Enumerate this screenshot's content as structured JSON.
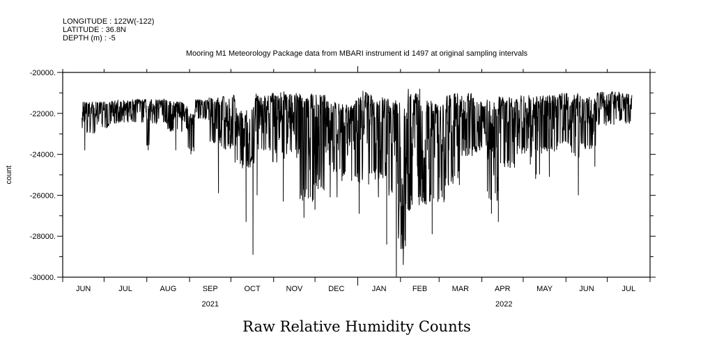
{
  "header": {
    "longitude": "LONGITUDE : 122W(-122)",
    "latitude": "LATITUDE : 36.8N",
    "depth": "DEPTH (m) : -5",
    "subtitle": "Mooring M1 Meteorology Package data from MBARI instrument id 1497 at original sampling intervals"
  },
  "chart_data": {
    "type": "line",
    "title": "Raw Relative Humidity Counts",
    "xlabel": "",
    "ylabel": "count",
    "x_units": "days since 2021-06-01",
    "xlim": [
      0,
      426
    ],
    "ylim": [
      -30000,
      -20000
    ],
    "y_ticks": [
      -20000,
      -22000,
      -24000,
      -26000,
      -28000,
      -30000
    ],
    "y_tick_labels": [
      "-20000.",
      "-22000.",
      "-24000.",
      "-26000.",
      "-28000.",
      "-30000."
    ],
    "month_boundaries": [
      0,
      30,
      61,
      92,
      122,
      153,
      183,
      214,
      245,
      273,
      304,
      334,
      365,
      395,
      426
    ],
    "month_labels": [
      "JUN",
      "JUL",
      "AUG",
      "SEP",
      "OCT",
      "NOV",
      "DEC",
      "JAN",
      "FEB",
      "MAR",
      "APR",
      "MAY",
      "JUN",
      "JUL"
    ],
    "year_labels": [
      {
        "label": "2021",
        "day": 107
      },
      {
        "label": "2022",
        "day": 320
      }
    ],
    "year_boundary_day": 214,
    "grid": false,
    "envelope_note": "segments: [start_day, end_day, max_count, min_count]",
    "segments": [
      [
        14,
        25,
        -21400,
        -23000
      ],
      [
        25,
        35,
        -21400,
        -22700
      ],
      [
        35,
        61,
        -21300,
        -22500
      ],
      [
        61,
        63,
        -21500,
        -23700
      ],
      [
        63,
        76,
        -21300,
        -22500
      ],
      [
        76,
        91,
        -21400,
        -22900
      ],
      [
        91,
        96,
        -22000,
        -23900
      ],
      [
        96,
        106,
        -21300,
        -22300
      ],
      [
        106,
        114,
        -21200,
        -23500
      ],
      [
        114,
        126,
        -21100,
        -23800
      ],
      [
        126,
        136,
        -21800,
        -24700
      ],
      [
        136,
        139,
        -21600,
        -24500
      ],
      [
        139,
        152,
        -21000,
        -23900
      ],
      [
        152,
        162,
        -20900,
        -24400
      ],
      [
        162,
        172,
        -21000,
        -24200
      ],
      [
        172,
        182,
        -21000,
        -26400
      ],
      [
        182,
        192,
        -21000,
        -25900
      ],
      [
        192,
        202,
        -21400,
        -24900
      ],
      [
        202,
        212,
        -21500,
        -25400
      ],
      [
        212,
        222,
        -20900,
        -25600
      ],
      [
        222,
        235,
        -21000,
        -25400
      ],
      [
        235,
        243,
        -21300,
        -26200
      ],
      [
        243,
        250,
        -21400,
        -28800
      ],
      [
        250,
        258,
        -20800,
        -26800
      ],
      [
        258,
        268,
        -21200,
        -26500
      ],
      [
        268,
        278,
        -21500,
        -26500
      ],
      [
        278,
        288,
        -21000,
        -25700
      ],
      [
        288,
        298,
        -21000,
        -24100
      ],
      [
        298,
        308,
        -21300,
        -24000
      ],
      [
        308,
        316,
        -21400,
        -26500
      ],
      [
        316,
        328,
        -21200,
        -24700
      ],
      [
        328,
        339,
        -21100,
        -24000
      ],
      [
        339,
        346,
        -21100,
        -25000
      ],
      [
        346,
        359,
        -21100,
        -24000
      ],
      [
        359,
        369,
        -21000,
        -23700
      ],
      [
        369,
        376,
        -21000,
        -24200
      ],
      [
        376,
        387,
        -21200,
        -23800
      ],
      [
        387,
        394,
        -20900,
        -22800
      ],
      [
        394,
        404,
        -20900,
        -22600
      ],
      [
        404,
        413,
        -21000,
        -22500
      ]
    ],
    "spikes": [
      [
        16,
        -23800
      ],
      [
        62,
        -23800
      ],
      [
        82,
        -23800
      ],
      [
        93,
        -24000
      ],
      [
        113,
        -25900
      ],
      [
        125,
        -24400
      ],
      [
        133,
        -27300
      ],
      [
        138,
        -28900
      ],
      [
        141,
        -26000
      ],
      [
        160,
        -26300
      ],
      [
        175,
        -27100
      ],
      [
        183,
        -26700
      ],
      [
        194,
        -26100
      ],
      [
        199,
        -26100
      ],
      [
        215,
        -26900
      ],
      [
        229,
        -26100
      ],
      [
        235,
        -28400
      ],
      [
        242,
        -30000
      ],
      [
        247,
        -29400
      ],
      [
        259,
        -20800
      ],
      [
        268,
        -27900
      ],
      [
        311,
        -26900
      ],
      [
        316,
        -27300
      ],
      [
        343,
        -25200
      ],
      [
        353,
        -25100
      ],
      [
        374,
        -26000
      ],
      [
        386,
        -24600
      ]
    ]
  }
}
